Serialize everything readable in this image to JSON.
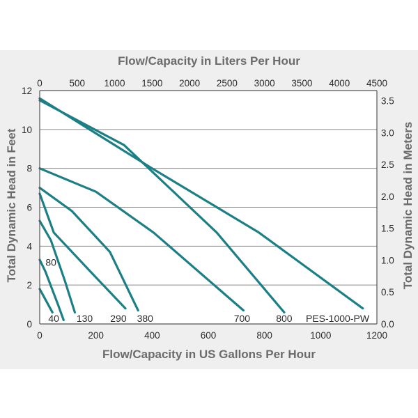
{
  "chart_data": {
    "type": "line",
    "title": "",
    "xlabel": "Flow/Capacity in US Gallons Per Hour",
    "ylabel": "Total Dynamic Head in Feet",
    "x2label": "Flow/Capacity in Liters Per Hour",
    "y2label": "Total Dynamic Head in Meters",
    "xlim": [
      0,
      1200
    ],
    "ylim": [
      0,
      12
    ],
    "x2lim": [
      0,
      4500
    ],
    "y2lim": [
      0,
      3.66
    ],
    "x_ticks": [
      "0",
      "200",
      "400",
      "600",
      "800",
      "1000",
      "1200"
    ],
    "y_ticks": [
      "0",
      "2",
      "4",
      "6",
      "8",
      "10",
      "12"
    ],
    "x2_ticks": [
      "0",
      "500",
      "1000",
      "1500",
      "2000",
      "2500",
      "3000",
      "3500",
      "4000",
      "4500"
    ],
    "y2_ticks": [
      "0.0",
      "0.5",
      "1.0",
      "1.5",
      "2.0",
      "2.5",
      "3.0",
      "3.5"
    ],
    "grid": true,
    "line_color": "#1d7f86",
    "series": [
      {
        "name": "40",
        "x": [
          0,
          45
        ],
        "y": [
          1.8,
          0.6
        ]
      },
      {
        "name": "80",
        "x": [
          0,
          20,
          65,
          85
        ],
        "y": [
          3.3,
          2.7,
          1.0,
          0.2
        ]
      },
      {
        "name": "130",
        "x": [
          0,
          40,
          90,
          125
        ],
        "y": [
          5.3,
          4.3,
          2.2,
          0.6
        ]
      },
      {
        "name": "290",
        "x": [
          0,
          50,
          180,
          305
        ],
        "y": [
          6.7,
          4.7,
          2.7,
          0.8
        ]
      },
      {
        "name": "380",
        "x": [
          0,
          115,
          250,
          350
        ],
        "y": [
          7.0,
          5.8,
          3.7,
          0.7
        ]
      },
      {
        "name": "700",
        "x": [
          0,
          200,
          405,
          725
        ],
        "y": [
          8.0,
          6.8,
          4.7,
          0.7
        ]
      },
      {
        "name": "800",
        "x": [
          0,
          300,
          630,
          870
        ],
        "y": [
          11.5,
          9.2,
          4.7,
          0.6
        ]
      },
      {
        "name": "PES-1000-PW",
        "x": [
          0,
          400,
          780,
          1150
        ],
        "y": [
          11.6,
          8.0,
          4.7,
          0.8
        ]
      }
    ],
    "curve_labels": [
      {
        "text": "40",
        "x": 50,
        "y": 0.1
      },
      {
        "text": "80",
        "x": 40,
        "y": 3.0
      },
      {
        "text": "130",
        "x": 160,
        "y": 0.1
      },
      {
        "text": "290",
        "x": 280,
        "y": 0.1
      },
      {
        "text": "380",
        "x": 375,
        "y": 0.1
      },
      {
        "text": "700",
        "x": 720,
        "y": 0.1
      },
      {
        "text": "800",
        "x": 870,
        "y": 0.1
      },
      {
        "text": "PES-1000-PW",
        "x": 1060,
        "y": 0.1
      }
    ]
  }
}
